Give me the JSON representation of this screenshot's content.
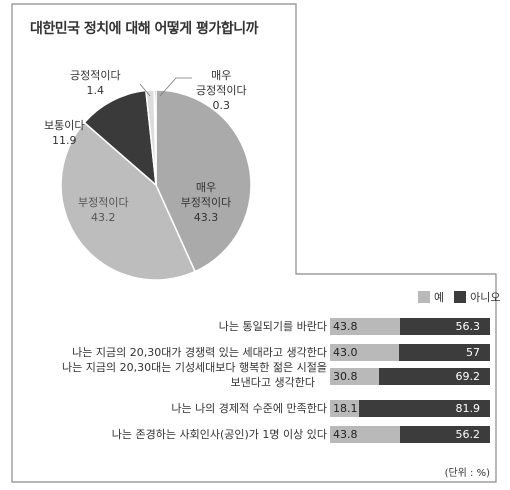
{
  "chart_data": [
    {
      "type": "pie",
      "title": "대한민국 정치에 대해 어떻게 평가합니까",
      "slices": [
        {
          "label": "매우 부정적이다",
          "value": 43.3,
          "value_text": "43.3",
          "color": "#aaaaaa"
        },
        {
          "label": "부정적이다",
          "value": 43.2,
          "value_text": "43.2",
          "color": "#bdbdbd"
        },
        {
          "label": "보통이다",
          "value": 11.9,
          "value_text": "11.9",
          "color": "#3a3a3a"
        },
        {
          "label": "긍정적이다",
          "value": 1.4,
          "value_text": "1.4",
          "color": "#dcdcdc"
        },
        {
          "label": "매우 긍정적이다",
          "value": 0.3,
          "value_text": "0.3",
          "color": "#777777"
        }
      ]
    },
    {
      "type": "bar",
      "stacked": true,
      "orientation": "horizontal",
      "legend": [
        {
          "name": "예",
          "color": "#b9b9b9"
        },
        {
          "name": "아니오",
          "color": "#3c3c3c"
        }
      ],
      "legend_position": "top-right",
      "unit": "(단위 : %)",
      "rows": [
        {
          "label": "나는 통일되기를 바란다",
          "yes": 43.8,
          "yes_text": "43.8",
          "no": 56.3,
          "no_text": "56.3"
        },
        {
          "label": "나는 지금의 20,30대가 경쟁력 있는 세대라고 생각한다",
          "yes": 43.0,
          "yes_text": "43.0",
          "no": 57,
          "no_text": "57"
        },
        {
          "label": "나는 지금의 20,30대는 기성세대보다 행복한 젊은 시절을",
          "label2": "보낸다고 생각한다",
          "yes": 30.8,
          "yes_text": "30.8",
          "no": 69.2,
          "no_text": "69.2"
        },
        {
          "label": "나는 나의 경제적 수준에 만족한다",
          "yes": 18.1,
          "yes_text": "18.1",
          "no": 81.9,
          "no_text": "81.9"
        },
        {
          "label": "나는 존경하는 사회인사(공인)가 1명 이상 있다",
          "yes": 43.8,
          "yes_text": "43.8",
          "no": 56.2,
          "no_text": "56.2"
        }
      ]
    }
  ]
}
